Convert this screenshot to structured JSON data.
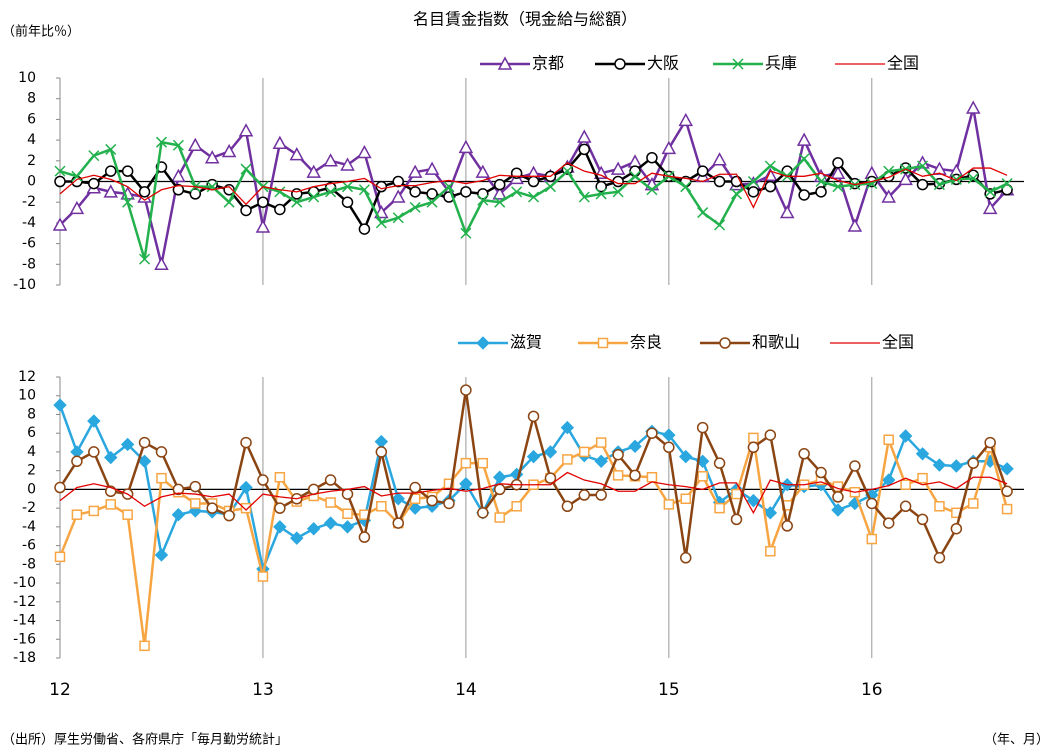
{
  "source": "（出所）厚生労働省、各府県庁「毎月勤労統計」",
  "chart_data": [
    {
      "type": "line",
      "title": "名目賃金指数（現金給与総額）",
      "y_label": "（前年比％）",
      "x": [
        0,
        1,
        2,
        3,
        4,
        5,
        6,
        7,
        8,
        9,
        10,
        11,
        12,
        13,
        14,
        15,
        16,
        17,
        18,
        19,
        20,
        21,
        22,
        23,
        24,
        25,
        26,
        27,
        28,
        29,
        30,
        31,
        32,
        33,
        34,
        35,
        36,
        37,
        38,
        39,
        40,
        41,
        42,
        43,
        44,
        45,
        46,
        47,
        48,
        49,
        50,
        51,
        52,
        53,
        54,
        55,
        56
      ],
      "xlim": [
        0,
        57
      ],
      "ylim": [
        -10,
        10
      ],
      "yticks": [
        10,
        8,
        6,
        4,
        2,
        0,
        -2,
        -4,
        -6,
        -8,
        -10
      ],
      "series": [
        {
          "name": "京都",
          "color": "#7030a0",
          "marker": "triangle",
          "values": [
            -4.2,
            -2.6,
            -0.6,
            -1.0,
            -1.2,
            -1.5,
            -8.0,
            0.5,
            3.5,
            2.3,
            2.9,
            4.9,
            -4.4,
            3.7,
            2.6,
            0.9,
            2.0,
            1.6,
            2.8,
            -3.0,
            -1.5,
            0.9,
            1.2,
            -1.0,
            3.3,
            0.9,
            -1.2,
            0.3,
            0.8,
            0.5,
            1.4,
            4.3,
            0.8,
            1.2,
            1.9,
            -0.3,
            3.2,
            5.9,
            0.5,
            2.1,
            -0.3,
            -0.2,
            0.6,
            -3.0,
            4.0,
            0.5,
            0.8,
            -4.3,
            0.8,
            -1.5,
            0.2,
            1.8,
            1.2,
            1.0,
            7.1,
            -2.6,
            -0.8
          ]
        },
        {
          "name": "大阪",
          "color": "#000000",
          "marker": "circle",
          "values": [
            0,
            0,
            -0.2,
            1,
            1,
            -1,
            1.4,
            -0.8,
            -1.2,
            -0.3,
            -0.8,
            -2.8,
            -2,
            -2.7,
            -1.2,
            -1,
            -0.6,
            -2,
            -4.6,
            -0.5,
            0,
            -1,
            -1.2,
            -1.5,
            -1,
            -1.2,
            -0.3,
            0.8,
            0,
            0.5,
            1.2,
            3.1,
            -0.5,
            0,
            1,
            2.3,
            0.5,
            0,
            1,
            0,
            0,
            -1,
            -0.5,
            1,
            -1.3,
            -1,
            1.8,
            -0.2,
            0,
            0.5,
            1.3,
            -0.3,
            -0.2,
            0.2,
            0.6,
            -1.2,
            -0.8
          ]
        },
        {
          "name": "兵庫",
          "color": "#22b14c",
          "marker": "cross",
          "values": [
            1,
            0.5,
            2.5,
            3.1,
            -2,
            -7.5,
            3.8,
            3.5,
            -0.5,
            -0.5,
            -2,
            1.2,
            -0.5,
            -1,
            -2,
            -1.5,
            -1,
            -0.5,
            -0.8,
            -4,
            -3.5,
            -2.5,
            -2,
            -0.5,
            -5,
            -1.8,
            -2,
            -1,
            -1.5,
            -0.5,
            1,
            -1.5,
            -1.2,
            -1,
            0.5,
            -0.8,
            0.5,
            -0.5,
            -3,
            -4.2,
            -1.2,
            0,
            1.5,
            0.5,
            2.2,
            0,
            -0.5,
            -0.3,
            -0.2,
            1,
            1.2,
            1.5,
            -0.3,
            0.2,
            0.3,
            -1,
            -0.2
          ]
        },
        {
          "name": "全国",
          "color": "#e00000",
          "marker": "none",
          "values": [
            -1.2,
            0.2,
            0.6,
            0.2,
            -0.5,
            -1.8,
            -0.8,
            -0.4,
            -0.5,
            -0.8,
            -0.5,
            -2.2,
            -0.5,
            -0.8,
            -1,
            -0.5,
            -0.2,
            0,
            0.3,
            -0.7,
            -0.4,
            -0.4,
            -0.1,
            0.1,
            -0.2,
            0.1,
            0.6,
            0.5,
            0.5,
            0.5,
            1.8,
            1,
            0.6,
            -0.2,
            -0.2,
            0.8,
            0.5,
            0.3,
            0,
            0.7,
            0.7,
            -2.5,
            1,
            0.5,
            0.5,
            0.8,
            0.1,
            -0.3,
            0,
            0.4,
            1.2,
            0.5,
            0.8,
            0.1,
            1.3,
            1.3,
            0.6
          ]
        }
      ]
    },
    {
      "type": "line",
      "x_label": "（年、月）",
      "x": [
        0,
        1,
        2,
        3,
        4,
        5,
        6,
        7,
        8,
        9,
        10,
        11,
        12,
        13,
        14,
        15,
        16,
        17,
        18,
        19,
        20,
        21,
        22,
        23,
        24,
        25,
        26,
        27,
        28,
        29,
        30,
        31,
        32,
        33,
        34,
        35,
        36,
        37,
        38,
        39,
        40,
        41,
        42,
        43,
        44,
        45,
        46,
        47,
        48,
        49,
        50,
        51,
        52,
        53,
        54,
        55,
        56
      ],
      "xlim": [
        0,
        57
      ],
      "xticks": [
        {
          "value": 0,
          "label": "12"
        },
        {
          "value": 12,
          "label": "13"
        },
        {
          "value": 24,
          "label": "14"
        },
        {
          "value": 36,
          "label": "15"
        },
        {
          "value": 48,
          "label": "16"
        }
      ],
      "ylim": [
        -18,
        12
      ],
      "yticks": [
        12,
        10,
        8,
        6,
        4,
        2,
        0,
        -2,
        -4,
        -6,
        -8,
        -10,
        -12,
        -14,
        -16,
        -18
      ],
      "series": [
        {
          "name": "滋賀",
          "color": "#2aa7df",
          "marker": "diamond",
          "values": [
            9,
            4,
            7.3,
            3.4,
            4.8,
            3,
            -7,
            -2.7,
            -2.3,
            -2.4,
            -2.7,
            0.2,
            -8.5,
            -4,
            -5.2,
            -4.2,
            -3.6,
            -4,
            -3.3,
            5.1,
            -1,
            -2,
            -1.8,
            -1.2,
            0.6,
            -2.5,
            1.3,
            1.6,
            3.5,
            4,
            6.6,
            3.6,
            3,
            4,
            4.6,
            6.2,
            5.8,
            3.5,
            3,
            -1.4,
            0,
            -1.2,
            -2.5,
            0.5,
            0.3,
            0.5,
            -2.2,
            -1.5,
            -0.6,
            1,
            5.7,
            3.8,
            2.6,
            2.5,
            3,
            3,
            2.2
          ]
        },
        {
          "name": "奈良",
          "color": "#f7a542",
          "marker": "square",
          "values": [
            -7.2,
            -2.7,
            -2.3,
            -1.6,
            -2.7,
            -16.7,
            1.2,
            -0.3,
            -1.5,
            -1.5,
            -2.3,
            -2,
            -9.3,
            1.3,
            -1.3,
            -0.7,
            -1.4,
            -2.6,
            -2.7,
            -1.8,
            -3.6,
            -1,
            -0.8,
            0.6,
            2.8,
            2.8,
            -3,
            -1.8,
            0.5,
            1.2,
            3.2,
            4,
            5,
            1.5,
            1.4,
            1.3,
            -1.6,
            -1,
            1.4,
            -2,
            -0.5,
            5.5,
            -6.6,
            -1.7,
            0.5,
            1,
            0.3,
            -0.3,
            -5.3,
            5.3,
            0.5,
            1.2,
            -1.8,
            -2.5,
            -1.5,
            4.5,
            -2.1
          ]
        },
        {
          "name": "和歌山",
          "color": "#8b4513",
          "marker": "circle",
          "values": [
            0.2,
            3,
            4,
            -0.2,
            -0.5,
            5,
            4,
            0,
            0.3,
            -2,
            -2.8,
            5,
            1,
            -2,
            -1,
            0,
            1,
            -0.5,
            -5.1,
            4,
            -3.6,
            0.2,
            -1.2,
            -1.5,
            10.6,
            -2.5,
            0,
            0.5,
            7.8,
            1.2,
            -1.8,
            -0.6,
            -0.6,
            3.7,
            1.5,
            6,
            4.5,
            -7.3,
            6.6,
            2.8,
            -3.2,
            4.5,
            5.8,
            -3.9,
            3.8,
            1.8,
            -0.8,
            2.5,
            -1.5,
            -3.6,
            -1.8,
            -3.2,
            -7.3,
            -4.2,
            2.8,
            5,
            -0.2
          ]
        },
        {
          "name": "全国",
          "color": "#e00000",
          "marker": "none",
          "values": [
            -1.2,
            0.2,
            0.6,
            0.2,
            -0.5,
            -1.8,
            -0.8,
            -0.4,
            -0.5,
            -0.8,
            -0.5,
            -2.2,
            -0.5,
            -0.8,
            -1,
            -0.5,
            -0.2,
            0,
            0.3,
            -0.7,
            -0.4,
            -0.4,
            -0.1,
            0.1,
            -0.2,
            0.1,
            0.6,
            0.5,
            0.5,
            0.5,
            1.8,
            1,
            0.6,
            -0.2,
            -0.2,
            0.8,
            0.5,
            0.3,
            0,
            0.7,
            0.7,
            -2.5,
            1,
            0.5,
            0.5,
            0.8,
            0.1,
            -0.3,
            0,
            0.4,
            1.2,
            0.5,
            0.8,
            0.1,
            1.3,
            1.3,
            0.6
          ]
        }
      ]
    }
  ]
}
